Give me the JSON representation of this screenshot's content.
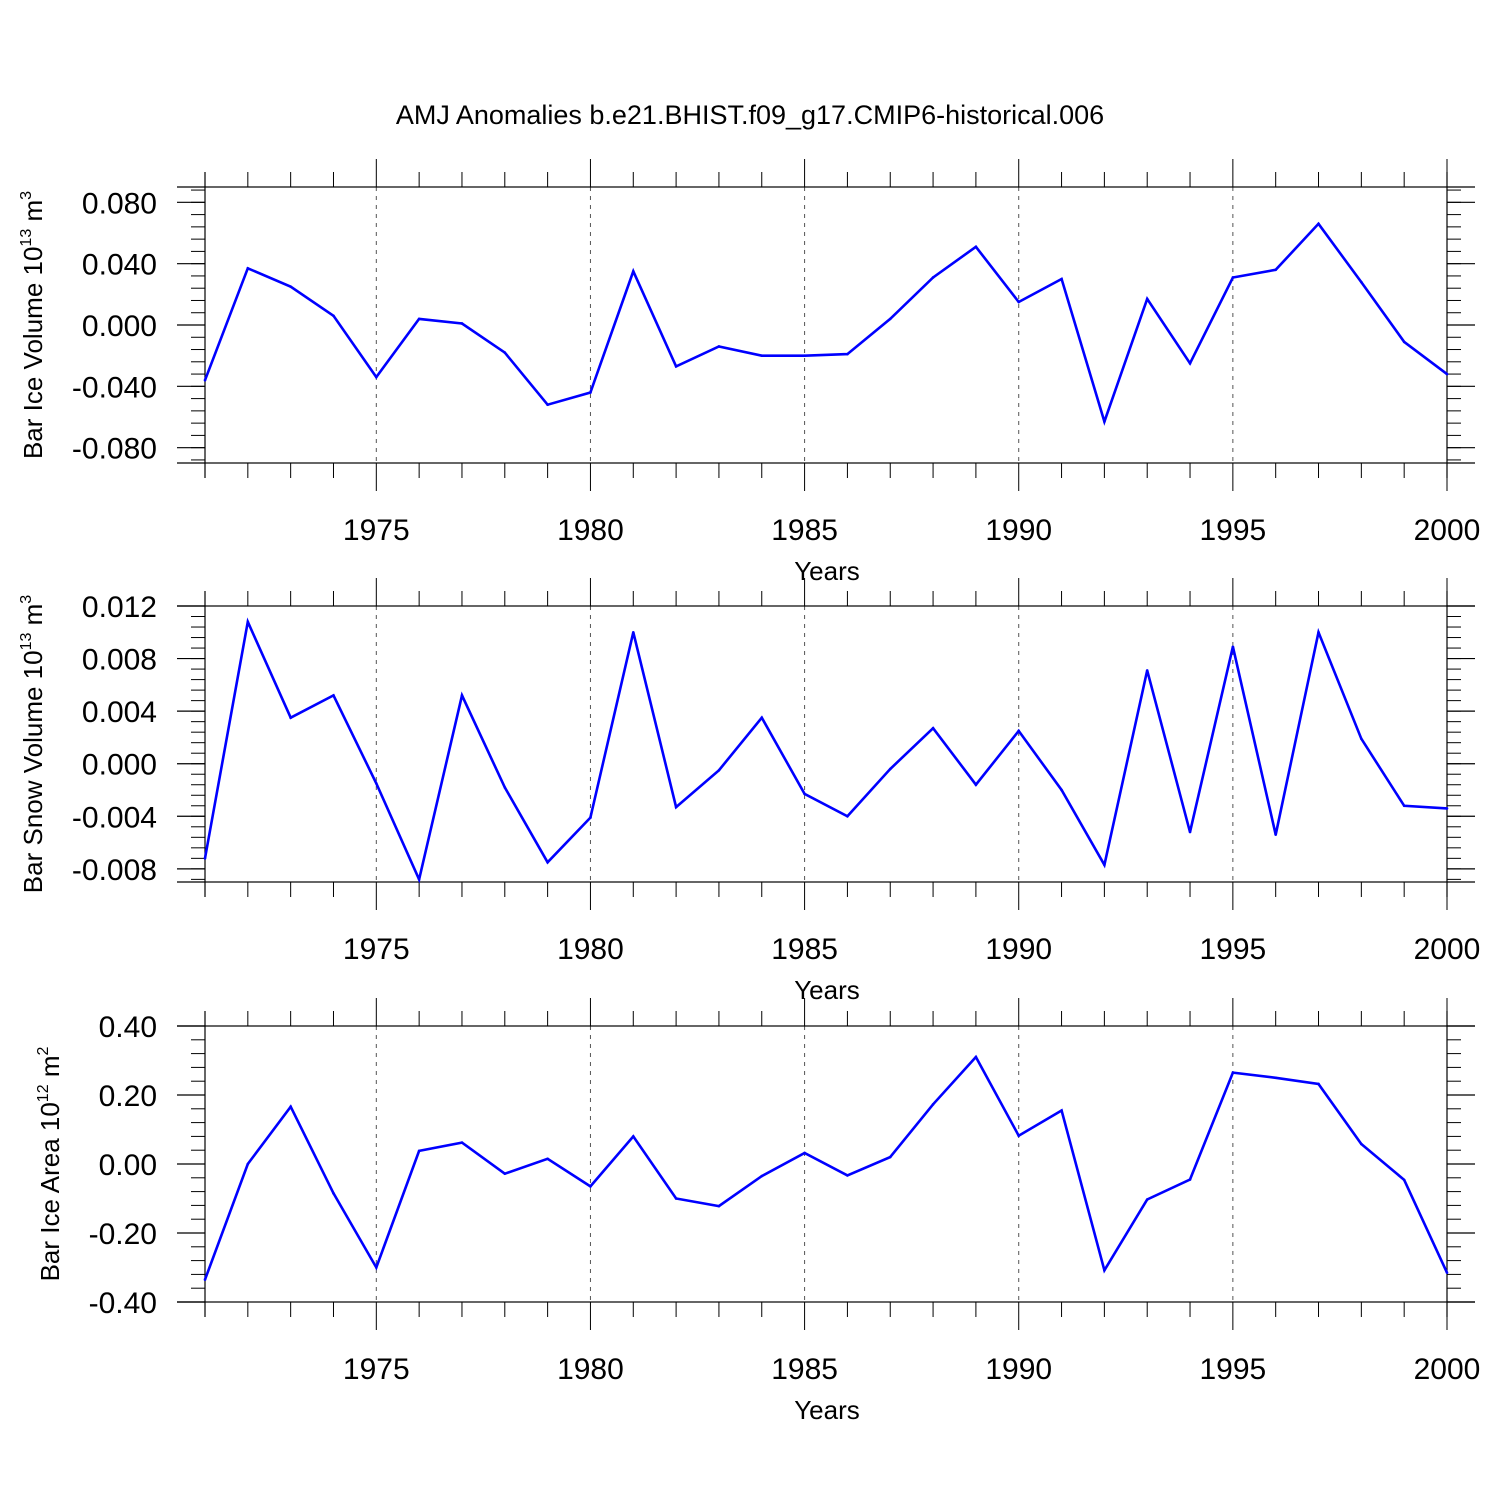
{
  "figure": {
    "title": "AMJ Anomalies b.e21.BHIST.f09_g17.CMIP6-historical.006"
  },
  "colors": {
    "line": "#0000ff",
    "axis": "#000000",
    "grid": "#555555"
  },
  "chart_data": [
    {
      "type": "line",
      "name": "ice-volume",
      "ylabel": "Bar Ice Volume",
      "ylabel_scale_base": "10",
      "ylabel_scale_exp": "13",
      "ylabel_unit": "m",
      "ylabel_unit_exp": "3",
      "xlabel": "Years",
      "xlim": [
        1971,
        2000
      ],
      "ylim": [
        -0.09,
        0.09
      ],
      "major_y": [
        "0.080",
        "0.040",
        "0.000",
        "-0.040",
        "-0.080"
      ],
      "major_y_values": [
        0.08,
        0.04,
        0.0,
        -0.04,
        -0.08
      ],
      "minor_y_step": 0.008,
      "major_x": [
        "1975",
        "1980",
        "1985",
        "1990",
        "1995",
        "2000"
      ],
      "major_x_values": [
        1975,
        1980,
        1985,
        1990,
        1995,
        2000
      ],
      "grid_x": [
        1975,
        1980,
        1985,
        1990,
        1995
      ],
      "x": [
        1971,
        1972,
        1973,
        1974,
        1975,
        1976,
        1977,
        1978,
        1979,
        1980,
        1981,
        1982,
        1983,
        1984,
        1985,
        1986,
        1987,
        1988,
        1989,
        1990,
        1991,
        1992,
        1993,
        1994,
        1995,
        1996,
        1997,
        1998,
        1999,
        2000
      ],
      "values": [
        -0.036,
        0.037,
        0.025,
        0.006,
        -0.034,
        0.004,
        0.001,
        -0.018,
        -0.052,
        -0.044,
        0.035,
        -0.027,
        -0.014,
        -0.02,
        -0.02,
        -0.019,
        0.004,
        0.031,
        0.051,
        0.015,
        0.03,
        -0.063,
        0.017,
        -0.025,
        0.031,
        0.036,
        0.066,
        0.028,
        -0.011,
        -0.032
      ]
    },
    {
      "type": "line",
      "name": "snow-volume",
      "ylabel": "Bar Snow Volume",
      "ylabel_scale_base": "10",
      "ylabel_scale_exp": "13",
      "ylabel_unit": "m",
      "ylabel_unit_exp": "3",
      "xlabel": "Years",
      "xlim": [
        1971,
        2000
      ],
      "ylim": [
        -0.009,
        0.012
      ],
      "major_y": [
        "0.012",
        "0.008",
        "0.004",
        "0.000",
        "-0.004",
        "-0.008"
      ],
      "major_y_values": [
        0.012,
        0.008,
        0.004,
        0.0,
        -0.004,
        -0.008
      ],
      "minor_y_step": 0.0008,
      "major_x": [
        "1975",
        "1980",
        "1985",
        "1990",
        "1995",
        "2000"
      ],
      "major_x_values": [
        1975,
        1980,
        1985,
        1990,
        1995,
        2000
      ],
      "grid_x": [
        1975,
        1980,
        1985,
        1990,
        1995
      ],
      "x": [
        1971,
        1972,
        1973,
        1974,
        1975,
        1976,
        1977,
        1978,
        1979,
        1980,
        1981,
        1982,
        1983,
        1984,
        1985,
        1986,
        1987,
        1988,
        1989,
        1990,
        1991,
        1992,
        1993,
        1994,
        1995,
        1996,
        1997,
        1998,
        1999,
        2000
      ],
      "values": [
        -0.0072,
        0.0108,
        0.0035,
        0.0052,
        -0.0015,
        -0.0088,
        0.0052,
        -0.0018,
        -0.0075,
        -0.0041,
        0.01,
        -0.0033,
        -0.0005,
        0.0035,
        -0.0023,
        -0.004,
        -0.0004,
        0.0027,
        -0.0016,
        0.0025,
        -0.002,
        -0.0077,
        0.0071,
        -0.0052,
        0.0089,
        -0.0054,
        0.01,
        0.0019,
        -0.0032,
        -0.0034
      ]
    },
    {
      "type": "line",
      "name": "ice-area",
      "ylabel": "Bar Ice Area",
      "ylabel_scale_base": "10",
      "ylabel_scale_exp": "12",
      "ylabel_unit": "m",
      "ylabel_unit_exp": "2",
      "xlabel": "Years",
      "xlim": [
        1971,
        2000
      ],
      "ylim": [
        -0.4,
        0.4
      ],
      "major_y": [
        "0.40",
        "0.20",
        "0.00",
        "-0.20",
        "-0.40"
      ],
      "major_y_values": [
        0.4,
        0.2,
        0.0,
        -0.2,
        -0.4
      ],
      "minor_y_step": 0.04,
      "major_x": [
        "1975",
        "1980",
        "1985",
        "1990",
        "1995",
        "2000"
      ],
      "major_x_values": [
        1975,
        1980,
        1985,
        1990,
        1995,
        2000
      ],
      "grid_x": [
        1975,
        1980,
        1985,
        1990,
        1995
      ],
      "x": [
        1971,
        1972,
        1973,
        1974,
        1975,
        1976,
        1977,
        1978,
        1979,
        1980,
        1981,
        1982,
        1983,
        1984,
        1985,
        1986,
        1987,
        1988,
        1989,
        1990,
        1991,
        1992,
        1993,
        1994,
        1995,
        1996,
        1997,
        1998,
        1999,
        2000
      ],
      "values": [
        -0.335,
        0.0,
        0.166,
        -0.085,
        -0.3,
        0.038,
        0.062,
        -0.028,
        0.015,
        -0.065,
        0.08,
        -0.1,
        -0.122,
        -0.035,
        0.032,
        -0.033,
        0.02,
        0.173,
        0.31,
        0.082,
        0.155,
        -0.308,
        -0.103,
        -0.045,
        0.265,
        0.25,
        0.232,
        0.058,
        -0.046,
        -0.315
      ]
    }
  ]
}
